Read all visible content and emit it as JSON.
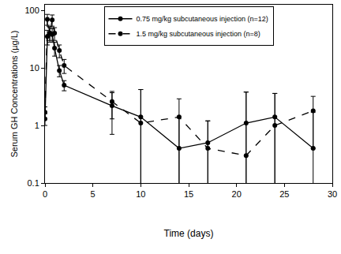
{
  "chart_data": {
    "type": "line",
    "x_label": "Time (days)",
    "y_label": "Serum GH Concentrations (µg/L)",
    "log": "y",
    "grid": false,
    "legend": "top",
    "xlim": [
      0,
      30
    ],
    "xticks": [
      0,
      5,
      10,
      15,
      20,
      25,
      30
    ],
    "ylim": [
      0.1,
      125
    ],
    "yticks": [
      0.1,
      1,
      10,
      100
    ],
    "series": [
      {
        "name": "0.75 mg/kg subcutaneous injection (n=12)",
        "color": "#000000",
        "line_style": "solid",
        "marker": "circle",
        "x": [
          0,
          0.25,
          0.5,
          0.75,
          1,
          1.5,
          2,
          7,
          10,
          14,
          17,
          21,
          24,
          28
        ],
        "values": [
          1.3,
          35,
          40,
          38,
          22,
          9,
          5,
          2.2,
          1.4,
          0.4,
          0.5,
          1.1,
          1.4,
          0.4
        ],
        "error": [
          0.3,
          10,
          12,
          10,
          6,
          2,
          1,
          1.5,
          2.8,
          1.0,
          0.7,
          2.7,
          2.2,
          1.3
        ]
      },
      {
        "name": "1.5 mg/kg subcutaneous injection (n=8)",
        "color": "#000000",
        "line_style": "dash",
        "marker": "circle",
        "x": [
          0,
          0.25,
          0.5,
          0.75,
          1,
          1.5,
          2,
          7,
          10,
          14,
          17,
          21,
          24,
          28
        ],
        "values": [
          1.7,
          70,
          40,
          68,
          40,
          20,
          11,
          2.6,
          1.1,
          1.4,
          0.4,
          0.3,
          1.0,
          1.8
        ],
        "error": [
          0.4,
          15,
          10,
          15,
          10,
          5,
          3,
          1.3,
          3.1,
          1.5,
          0.8,
          3.5,
          2.6,
          1.4
        ]
      }
    ]
  }
}
